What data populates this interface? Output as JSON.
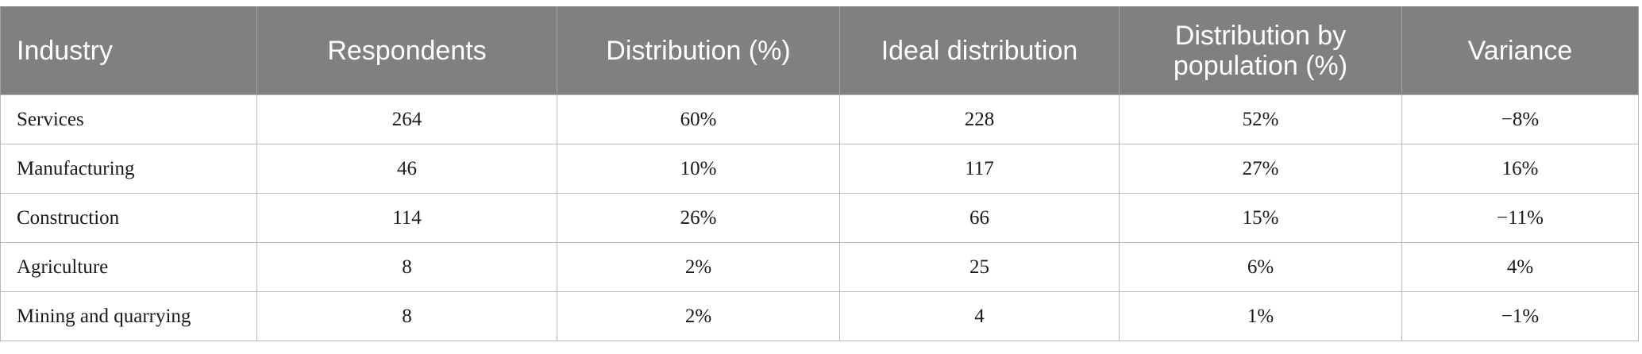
{
  "table": {
    "headers": [
      "Industry",
      "Respondents",
      "Distribution (%)",
      "Ideal distribution",
      "Distribution by population (%)",
      "Variance"
    ],
    "rows": [
      [
        "Services",
        "264",
        "60%",
        "228",
        "52%",
        "−8%"
      ],
      [
        "Manufacturing",
        "46",
        "10%",
        "117",
        "27%",
        "16%"
      ],
      [
        "Construction",
        "114",
        "26%",
        "66",
        "15%",
        "−11%"
      ],
      [
        "Agriculture",
        "8",
        "2%",
        "25",
        "6%",
        "4%"
      ],
      [
        "Mining and quarrying",
        "8",
        "2%",
        "4",
        "1%",
        "−1%"
      ]
    ]
  },
  "colors": {
    "header_background": "#7f807f",
    "header_text": "#ffffff",
    "cell_border": "#b9b9b9"
  }
}
